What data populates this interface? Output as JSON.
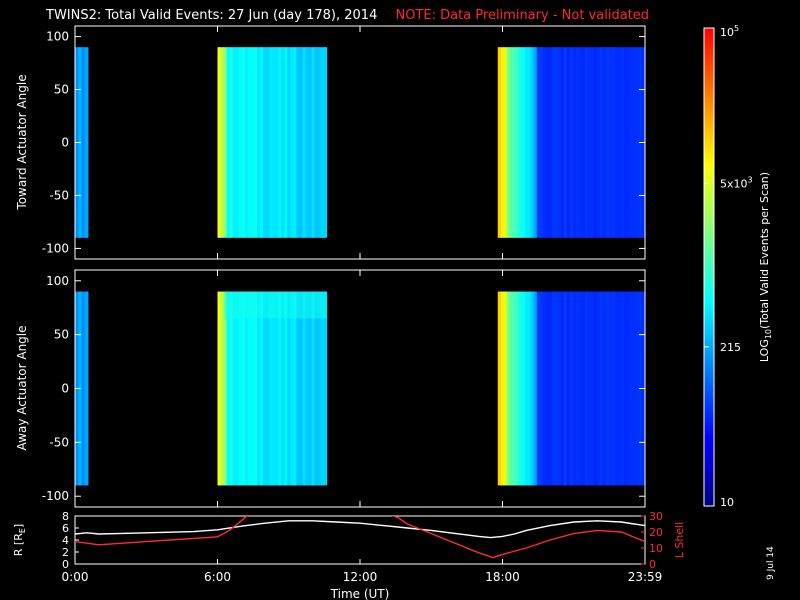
{
  "title": "TWINS2: Total Valid Events: 27 Jun (day 178), 2014",
  "note": "NOTE: Data Preliminary - Not validated",
  "datestamp": "9 Jul 14",
  "colors": {
    "background": "#000000",
    "axes": "#ffffff",
    "note": "#ff2a2a",
    "r_line": "#ffffff",
    "l_line": "#ff2a2a"
  },
  "chart_data": [
    {
      "type": "heatmap",
      "panel": "top",
      "ylabel": "Toward Actuator Angle",
      "ylim": [
        -110,
        110
      ],
      "yticks": [
        100,
        50,
        0,
        -50,
        -100
      ],
      "xlim_hours": [
        0,
        24
      ],
      "blocks": [
        {
          "start_hour": 0.0,
          "end_hour": 0.55,
          "profile": "flat-blue"
        },
        {
          "start_hour": 6.0,
          "end_hour": 10.6,
          "profile": "yellow-to-cyan"
        },
        {
          "start_hour": 17.8,
          "end_hour": 24.0,
          "profile": "yellow-to-deep-blue"
        }
      ],
      "angle_range": [
        -90,
        90
      ]
    },
    {
      "type": "heatmap",
      "panel": "middle",
      "ylabel": "Away Actuator Angle",
      "ylim": [
        -110,
        110
      ],
      "yticks": [
        100,
        50,
        0,
        -50,
        -100
      ],
      "xlim_hours": [
        0,
        24
      ],
      "blocks": [
        {
          "start_hour": 0.0,
          "end_hour": 0.55,
          "profile": "flat-blue"
        },
        {
          "start_hour": 6.0,
          "end_hour": 10.6,
          "profile": "yellow-to-cyan"
        },
        {
          "start_hour": 17.8,
          "end_hour": 24.0,
          "profile": "yellow-to-deep-blue"
        }
      ],
      "angle_range": [
        -90,
        90
      ]
    },
    {
      "type": "line",
      "panel": "bottom",
      "xlabel": "Time (UT)",
      "xticks": [
        "0:00",
        "6:00",
        "12:00",
        "18:00",
        "23:59"
      ],
      "xtick_hours": [
        0,
        6,
        12,
        18,
        24
      ],
      "left_axis": {
        "label": "R [RE]",
        "label_main": "R [R",
        "label_sub": "E",
        "label_end": "]",
        "ylim": [
          0,
          8
        ],
        "yticks": [
          8,
          6,
          4,
          2,
          0
        ]
      },
      "right_axis": {
        "label": "L Shell",
        "ylim": [
          0,
          30
        ],
        "yticks": [
          30,
          20,
          10,
          0
        ]
      },
      "series": [
        {
          "key": "r",
          "axis": "left",
          "x": [
            0,
            0.5,
            1,
            2,
            3,
            4,
            5,
            6,
            7,
            8,
            9,
            10,
            11,
            12,
            13,
            14,
            15,
            16,
            17,
            17.5,
            18,
            18.5,
            19,
            20,
            21,
            22,
            23,
            24
          ],
          "y": [
            5.0,
            5.2,
            5.0,
            5.1,
            5.2,
            5.3,
            5.4,
            5.7,
            6.3,
            6.8,
            7.2,
            7.2,
            7.0,
            6.8,
            6.4,
            6.0,
            5.6,
            5.1,
            4.6,
            4.4,
            4.6,
            5.0,
            5.6,
            6.4,
            7.0,
            7.2,
            7.0,
            6.4
          ]
        },
        {
          "key": "l",
          "axis": "right",
          "x": [
            0,
            0.5,
            1,
            2,
            3,
            4,
            5,
            6,
            6.5,
            7,
            7.3,
            13.2,
            13.6,
            14,
            15,
            16,
            17,
            17.6,
            18,
            19,
            20,
            21,
            22,
            23,
            24
          ],
          "y": [
            14,
            13,
            12,
            13,
            14,
            15,
            16,
            17,
            21,
            27,
            31,
            31,
            29,
            25,
            19,
            13,
            7,
            4,
            6,
            10,
            15,
            19,
            21,
            20,
            14
          ]
        }
      ]
    }
  ],
  "colorbar": {
    "label_main": "LOG",
    "label_sub": "10",
    "label_rest": "(Total Valid Events per Scan)",
    "ticks": [
      {
        "text": "10",
        "value_log": 1.0
      },
      {
        "text": "215",
        "value_log": 2.332
      },
      {
        "text": "5x10",
        "sup": "3",
        "value_log": 3.699
      },
      {
        "text": "10",
        "sup": "5",
        "value_log": 5.0
      }
    ],
    "range_log": [
      1,
      5
    ],
    "stops": [
      "#000080",
      "#0000ff",
      "#0080ff",
      "#00ffff",
      "#80ff80",
      "#ffff00",
      "#ff8000",
      "#ff0000"
    ]
  }
}
